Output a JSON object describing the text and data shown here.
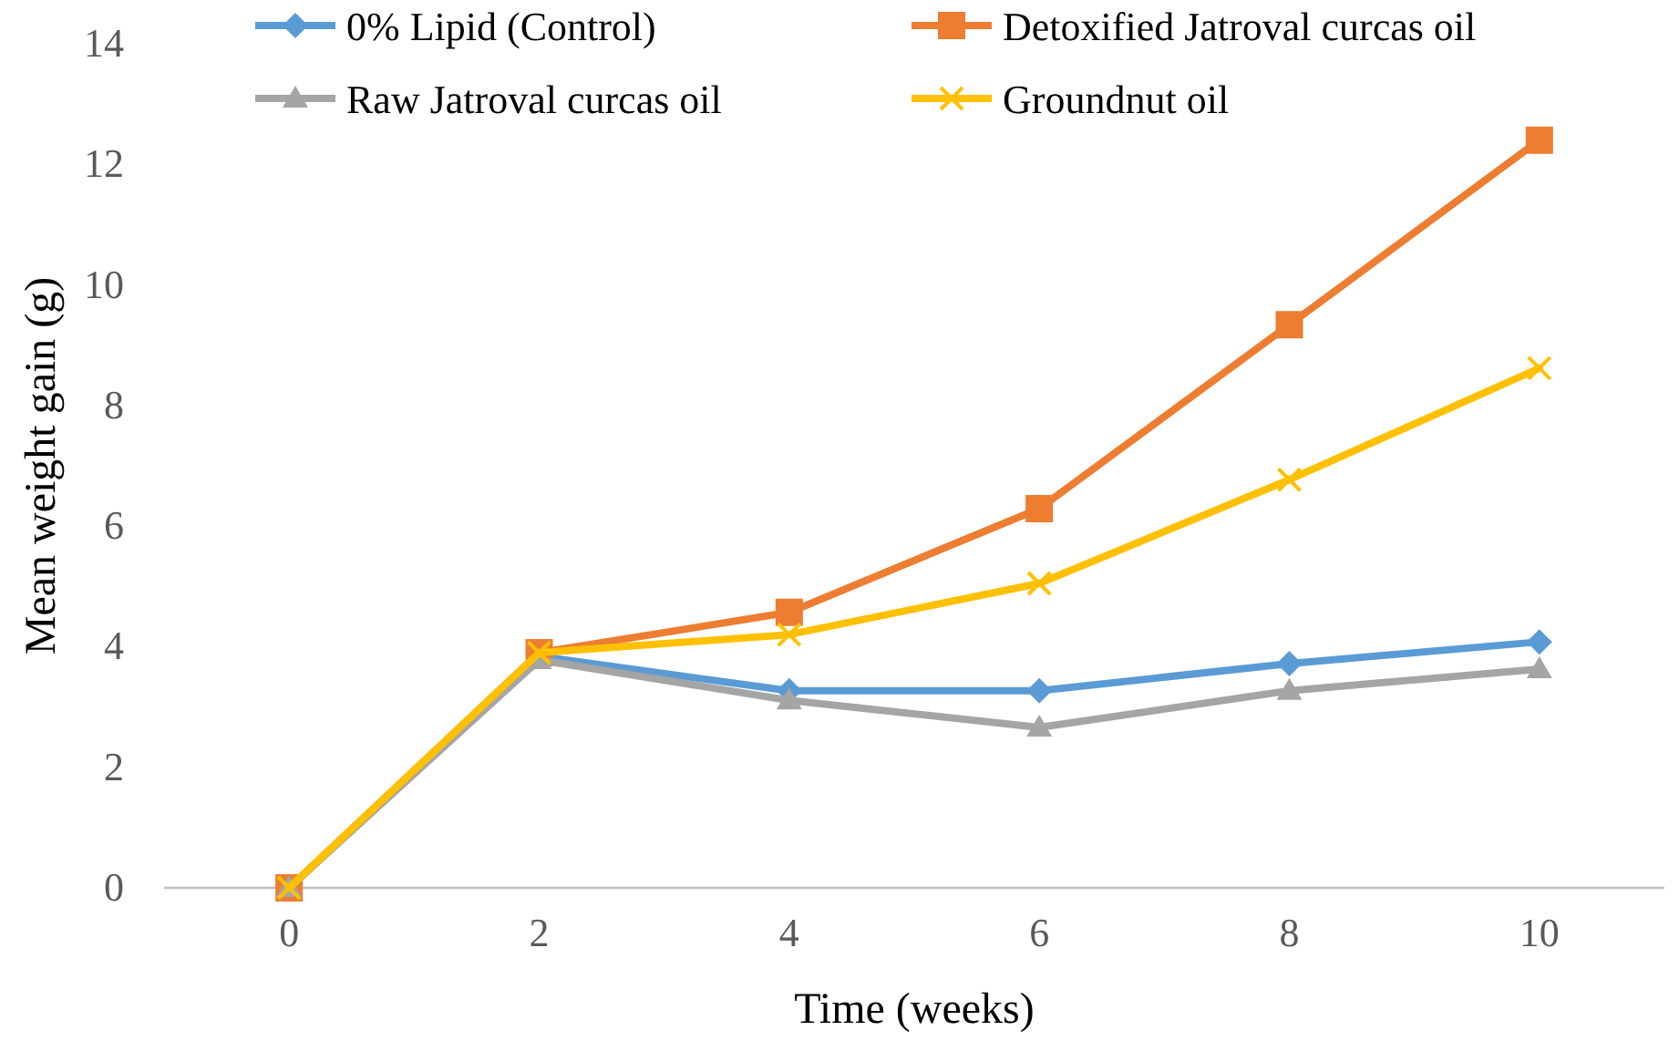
{
  "chart_data": {
    "type": "line",
    "xlabel": "Time (weeks)",
    "ylabel": "Mean weight gain (g)",
    "x": [
      0,
      2,
      4,
      6,
      8,
      10
    ],
    "xlim": [
      -1,
      11
    ],
    "xticks": [
      0,
      2,
      4,
      6,
      8,
      10
    ],
    "ylim": [
      0,
      14
    ],
    "yticks": [
      0,
      2,
      4,
      6,
      8,
      10,
      12,
      14
    ],
    "grid": false,
    "legend": "top",
    "series": [
      {
        "name": "0% Lipid (Control)",
        "color": "#5b9bd5",
        "marker": "diamond",
        "values": [
          0,
          3.84,
          3.27,
          3.27,
          3.72,
          4.08
        ]
      },
      {
        "name": "Detoxified Jatroval curcas oil",
        "color": "#ed7d31",
        "marker": "square",
        "values": [
          0,
          3.9,
          4.57,
          6.29,
          9.34,
          12.4
        ]
      },
      {
        "name": "Raw Jatroval curcas oil",
        "color": "#a5a5a5",
        "marker": "triangle",
        "values": [
          0,
          3.78,
          3.11,
          2.66,
          3.27,
          3.63
        ]
      },
      {
        "name": "Groundnut oil",
        "color": "#ffc000",
        "marker": "cross",
        "values": [
          0,
          3.9,
          4.2,
          5.05,
          6.77,
          8.62
        ]
      }
    ]
  }
}
